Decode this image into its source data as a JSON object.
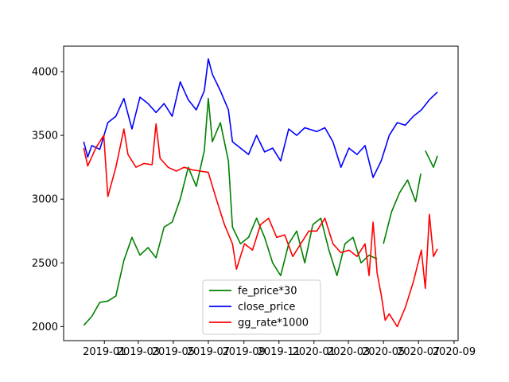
{
  "chart_data": {
    "type": "line",
    "x_start": "2018-11-26",
    "x_end": "2020-08-03",
    "xlim": [
      "2018-10-22",
      "2020-09-08"
    ],
    "ylim": [
      1890,
      4200
    ],
    "x_ticks": [
      {
        "date": "2019-01-01",
        "label": "2019-01"
      },
      {
        "date": "2019-03-01",
        "label": "2019-03"
      },
      {
        "date": "2019-05-01",
        "label": "2019-05"
      },
      {
        "date": "2019-07-01",
        "label": "2019-07"
      },
      {
        "date": "2019-09-01",
        "label": "2019-09"
      },
      {
        "date": "2019-11-01",
        "label": "2019-11"
      },
      {
        "date": "2020-01-01",
        "label": "2020-01"
      },
      {
        "date": "2020-03-01",
        "label": "2020-03"
      },
      {
        "date": "2020-05-01",
        "label": "2020-05"
      },
      {
        "date": "2020-07-01",
        "label": "2020-07"
      },
      {
        "date": "2020-09-01",
        "label": "2020-09"
      }
    ],
    "y_ticks": [
      2000,
      2500,
      3000,
      3500,
      4000
    ],
    "grid": false,
    "legend": "lower-center",
    "series": [
      {
        "name": "fe_price*30",
        "color": "#008000",
        "points": [
          [
            "2018-11-26",
            2010
          ],
          [
            "2018-12-10",
            2080
          ],
          [
            "2018-12-24",
            2190
          ],
          [
            "2019-01-07",
            2200
          ],
          [
            "2019-01-21",
            2240
          ],
          [
            "2019-02-04",
            2520
          ],
          [
            "2019-02-18",
            2700
          ],
          [
            "2019-03-04",
            2560
          ],
          [
            "2019-03-18",
            2620
          ],
          [
            "2019-04-01",
            2540
          ],
          [
            "2019-04-15",
            2780
          ],
          [
            "2019-04-29",
            2820
          ],
          [
            "2019-05-13",
            3000
          ],
          [
            "2019-05-27",
            3250
          ],
          [
            "2019-06-10",
            3100
          ],
          [
            "2019-06-24",
            3380
          ],
          [
            "2019-07-01",
            3790
          ],
          [
            "2019-07-08",
            3450
          ],
          [
            "2019-07-22",
            3600
          ],
          [
            "2019-08-05",
            3300
          ],
          [
            "2019-08-12",
            2780
          ],
          [
            "2019-08-26",
            2650
          ],
          [
            "2019-09-09",
            2700
          ],
          [
            "2019-09-23",
            2850
          ],
          [
            "2019-10-07",
            2700
          ],
          [
            "2019-10-21",
            2500
          ],
          [
            "2019-11-04",
            2400
          ],
          [
            "2019-11-18",
            2650
          ],
          [
            "2019-12-02",
            2750
          ],
          [
            "2019-12-16",
            2500
          ],
          [
            "2019-12-30",
            2800
          ],
          [
            "2020-01-13",
            2850
          ],
          [
            "2020-01-27",
            2600
          ],
          [
            "2020-02-10",
            2400
          ],
          [
            "2020-02-24",
            2650
          ],
          [
            "2020-03-09",
            2700
          ],
          [
            "2020-03-23",
            2500
          ],
          [
            "2020-04-06",
            2560
          ],
          [
            "2020-04-20",
            2530
          ],
          null,
          [
            "2020-05-01",
            2650
          ],
          [
            "2020-05-15",
            2900
          ],
          [
            "2020-05-29",
            3050
          ],
          [
            "2020-06-12",
            3150
          ],
          [
            "2020-06-26",
            2980
          ],
          [
            "2020-07-05",
            3200
          ],
          null,
          [
            "2020-07-13",
            3380
          ],
          [
            "2020-07-27",
            3250
          ],
          [
            "2020-08-03",
            3340
          ]
        ]
      },
      {
        "name": "close_price",
        "color": "#0000ff",
        "points": [
          [
            "2018-11-26",
            3450
          ],
          [
            "2018-12-03",
            3330
          ],
          [
            "2018-12-10",
            3420
          ],
          [
            "2018-12-24",
            3390
          ],
          [
            "2019-01-07",
            3600
          ],
          [
            "2019-01-21",
            3650
          ],
          [
            "2019-02-04",
            3790
          ],
          [
            "2019-02-18",
            3550
          ],
          [
            "2019-03-04",
            3800
          ],
          [
            "2019-03-18",
            3750
          ],
          [
            "2019-04-01",
            3680
          ],
          [
            "2019-04-15",
            3750
          ],
          [
            "2019-04-29",
            3650
          ],
          [
            "2019-05-13",
            3920
          ],
          [
            "2019-05-27",
            3780
          ],
          [
            "2019-06-10",
            3700
          ],
          [
            "2019-06-24",
            3850
          ],
          [
            "2019-07-01",
            4100
          ],
          [
            "2019-07-08",
            3980
          ],
          [
            "2019-07-22",
            3850
          ],
          [
            "2019-08-05",
            3700
          ],
          [
            "2019-08-12",
            3450
          ],
          [
            "2019-08-26",
            3400
          ],
          [
            "2019-09-09",
            3350
          ],
          [
            "2019-09-23",
            3500
          ],
          [
            "2019-10-07",
            3370
          ],
          [
            "2019-10-21",
            3400
          ],
          [
            "2019-11-04",
            3300
          ],
          [
            "2019-11-18",
            3550
          ],
          [
            "2019-12-02",
            3500
          ],
          [
            "2019-12-16",
            3560
          ],
          [
            "2020-01-06",
            3530
          ],
          [
            "2020-01-20",
            3560
          ],
          [
            "2020-02-03",
            3450
          ],
          [
            "2020-02-17",
            3250
          ],
          [
            "2020-03-02",
            3400
          ],
          [
            "2020-03-16",
            3350
          ],
          [
            "2020-03-30",
            3420
          ],
          [
            "2020-04-13",
            3170
          ],
          [
            "2020-04-27",
            3300
          ],
          [
            "2020-05-11",
            3500
          ],
          [
            "2020-05-25",
            3600
          ],
          [
            "2020-06-08",
            3580
          ],
          [
            "2020-06-22",
            3650
          ],
          [
            "2020-07-06",
            3700
          ],
          [
            "2020-07-20",
            3780
          ],
          [
            "2020-08-03",
            3840
          ]
        ]
      },
      {
        "name": "gg_rate*1000",
        "color": "#ff0000",
        "points": [
          [
            "2018-11-26",
            3400
          ],
          [
            "2018-12-03",
            3260
          ],
          [
            "2018-12-17",
            3400
          ],
          [
            "2018-12-31",
            3500
          ],
          [
            "2019-01-07",
            3020
          ],
          [
            "2019-01-21",
            3250
          ],
          [
            "2019-02-04",
            3550
          ],
          [
            "2019-02-11",
            3350
          ],
          [
            "2019-02-25",
            3250
          ],
          [
            "2019-03-11",
            3280
          ],
          [
            "2019-03-25",
            3270
          ],
          [
            "2019-04-01",
            3590
          ],
          [
            "2019-04-08",
            3320
          ],
          [
            "2019-04-22",
            3250
          ],
          [
            "2019-05-06",
            3220
          ],
          [
            "2019-05-20",
            3250
          ],
          [
            "2019-06-03",
            3230
          ],
          [
            "2019-06-17",
            3220
          ],
          [
            "2019-07-01",
            3210
          ],
          [
            "2019-07-15",
            3000
          ],
          [
            "2019-07-29",
            2800
          ],
          [
            "2019-08-12",
            2650
          ],
          [
            "2019-08-19",
            2450
          ],
          [
            "2019-09-02",
            2650
          ],
          [
            "2019-09-16",
            2600
          ],
          [
            "2019-09-30",
            2800
          ],
          [
            "2019-10-14",
            2850
          ],
          [
            "2019-10-28",
            2700
          ],
          [
            "2019-11-11",
            2720
          ],
          [
            "2019-11-25",
            2550
          ],
          [
            "2019-12-09",
            2650
          ],
          [
            "2019-12-23",
            2750
          ],
          [
            "2020-01-06",
            2750
          ],
          [
            "2020-01-20",
            2850
          ],
          [
            "2020-02-03",
            2650
          ],
          [
            "2020-02-17",
            2580
          ],
          [
            "2020-03-02",
            2600
          ],
          [
            "2020-03-16",
            2550
          ],
          [
            "2020-03-30",
            2650
          ],
          [
            "2020-04-06",
            2400
          ],
          [
            "2020-04-13",
            2820
          ],
          [
            "2020-04-20",
            2420
          ],
          [
            "2020-04-27",
            2250
          ],
          [
            "2020-05-04",
            2050
          ],
          [
            "2020-05-11",
            2100
          ],
          [
            "2020-05-25",
            2000
          ],
          [
            "2020-06-08",
            2150
          ],
          [
            "2020-06-22",
            2350
          ],
          [
            "2020-07-06",
            2600
          ],
          [
            "2020-07-13",
            2300
          ],
          [
            "2020-07-20",
            2880
          ],
          [
            "2020-07-27",
            2550
          ],
          [
            "2020-08-03",
            2610
          ]
        ]
      }
    ]
  }
}
